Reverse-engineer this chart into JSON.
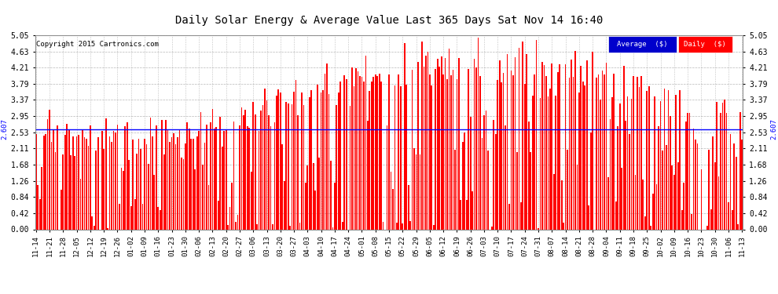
{
  "title": "Daily Solar Energy & Average Value Last 365 Days Sat Nov 14 16:40",
  "copyright": "Copyright 2015 Cartronics.com",
  "average_value": 2.607,
  "ylim": [
    0.0,
    5.05
  ],
  "yticks": [
    0.0,
    0.42,
    0.84,
    1.26,
    1.68,
    2.11,
    2.53,
    2.95,
    3.37,
    3.79,
    4.21,
    4.63,
    5.05
  ],
  "bar_color": "#ff0000",
  "avg_line_color": "#0000ff",
  "bg_color": "#ffffff",
  "plot_bg_color": "#ffffff",
  "grid_color": "#888888",
  "title_color": "#000000",
  "legend_avg_bg": "#0000cc",
  "legend_daily_bg": "#ff0000",
  "legend_text_color": "#ffffff",
  "avg_label_color": "#0000ff",
  "figsize": [
    9.9,
    3.75
  ],
  "dpi": 100,
  "tick_every": 7,
  "start_date": "2014-11-14"
}
